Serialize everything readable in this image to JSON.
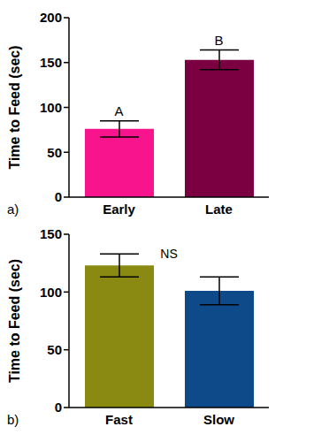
{
  "chart_data": [
    {
      "type": "bar",
      "panel": "a)",
      "y_label": "Time to Feed (sec)",
      "categories": [
        "Early",
        "Late"
      ],
      "values": [
        76,
        153
      ],
      "errors": [
        9,
        11
      ],
      "colors": [
        "#f7148c",
        "#7b0041"
      ],
      "ylim": [
        0,
        200
      ],
      "yticks": [
        0,
        50,
        100,
        150,
        200
      ],
      "annotations": [
        {
          "text": "A",
          "x": "Early"
        },
        {
          "text": "B",
          "x": "Late"
        }
      ]
    },
    {
      "type": "bar",
      "panel": "b)",
      "y_label": "Time to Feed (sec)",
      "categories": [
        "Fast",
        "Slow"
      ],
      "values": [
        123,
        101
      ],
      "errors": [
        10,
        12
      ],
      "colors": [
        "#8a8a12",
        "#0e4a8a"
      ],
      "ylim": [
        0,
        150
      ],
      "yticks": [
        0,
        50,
        100,
        150
      ],
      "annotations": [
        {
          "text": "NS"
        }
      ]
    }
  ]
}
